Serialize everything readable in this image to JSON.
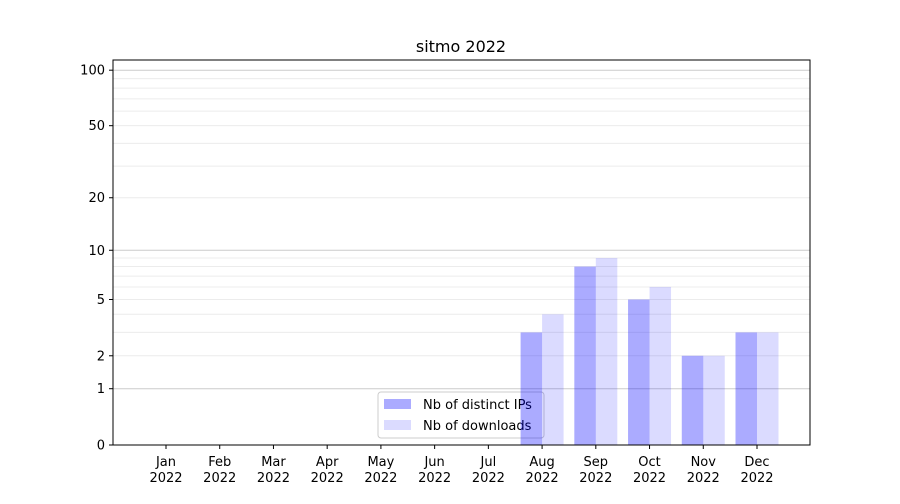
{
  "chart_data": {
    "type": "bar",
    "title": "sitmo 2022",
    "xlabel": "",
    "ylabel": "",
    "yscale": "log(1+y)",
    "ylim": [
      0,
      110
    ],
    "grid": true,
    "legend_position": "lower-center",
    "categories": [
      [
        "Jan",
        "2022"
      ],
      [
        "Feb",
        "2022"
      ],
      [
        "Mar",
        "2022"
      ],
      [
        "Apr",
        "2022"
      ],
      [
        "May",
        "2022"
      ],
      [
        "Jun",
        "2022"
      ],
      [
        "Jul",
        "2022"
      ],
      [
        "Aug",
        "2022"
      ],
      [
        "Sep",
        "2022"
      ],
      [
        "Oct",
        "2022"
      ],
      [
        "Nov",
        "2022"
      ],
      [
        "Dec",
        "2022"
      ]
    ],
    "yticks": [
      0,
      1,
      2,
      5,
      10,
      20,
      50,
      100
    ],
    "series": [
      {
        "name": "Nb of distinct IPs",
        "color": "#0000ff",
        "alpha": 0.33,
        "values": [
          0,
          0,
          0,
          0,
          0,
          0,
          0,
          3,
          8,
          5,
          2,
          3
        ]
      },
      {
        "name": "Nb of downloads",
        "color": "#0000ff",
        "alpha": 0.14,
        "values": [
          0,
          0,
          0,
          0,
          0,
          0,
          0,
          4,
          9,
          6,
          2,
          3
        ]
      }
    ]
  }
}
